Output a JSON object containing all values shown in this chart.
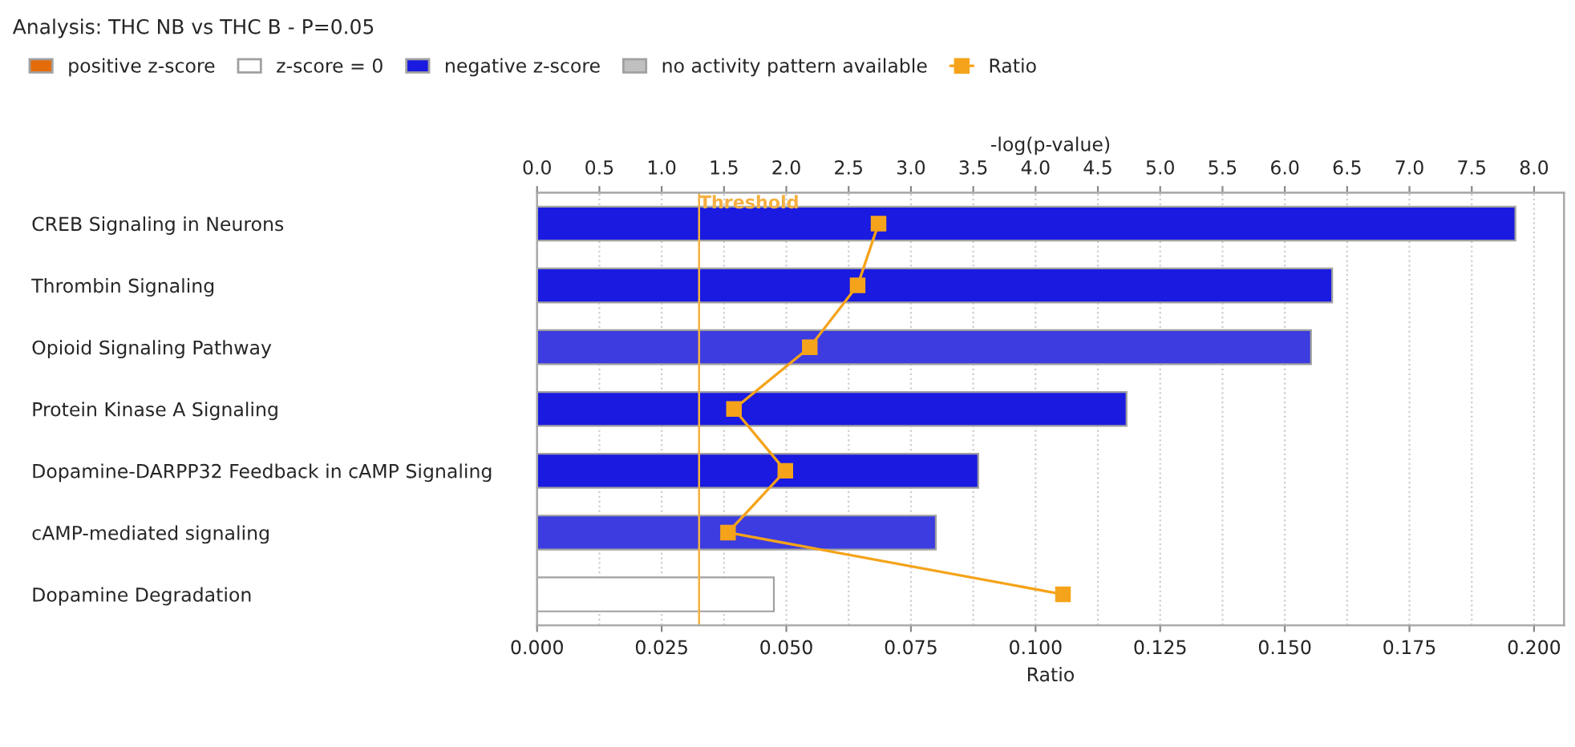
{
  "chart_data": {
    "type": "bar",
    "orientation": "horizontal",
    "title": "Analysis: THC NB vs THC B - P=0.05",
    "categories": [
      "CREB Signaling in Neurons",
      "Thrombin Signaling",
      "Opioid Signaling Pathway",
      "Protein Kinase A Signaling",
      "Dopamine-DARPP32 Feedback in cAMP Signaling",
      "cAMP-mediated signaling",
      "Dopamine Degradation"
    ],
    "series": [
      {
        "name": "positive z-score",
        "color": "#e46c0a",
        "values": [
          null,
          null,
          null,
          null,
          null,
          null,
          null
        ]
      },
      {
        "name": "z-score = 0",
        "color": "#ffffff",
        "values": [
          null,
          null,
          null,
          null,
          null,
          null,
          1.9
        ]
      },
      {
        "name": "negative z-score",
        "color": "#1a1ae0",
        "colors": [
          "#1a1ae0",
          "#1a1ae0",
          "#3c3ce0",
          "#1a1ae0",
          "#1a1ae0",
          "#3c3ce0",
          "#1a1ae0"
        ],
        "values": [
          7.85,
          6.38,
          6.21,
          4.73,
          3.54,
          3.2,
          null
        ]
      },
      {
        "name": "no activity pattern available",
        "color": "#c0c0c0",
        "values": [
          null,
          null,
          null,
          null,
          null,
          null,
          null
        ]
      },
      {
        "name": "Ratio",
        "type": "line",
        "axis": "x2",
        "color": "#f5a31a",
        "marker": "square",
        "values": [
          0.0685,
          0.0643,
          0.0547,
          0.0395,
          0.0498,
          0.0383,
          0.1055
        ]
      }
    ],
    "x2label": "Ratio",
    "x2lim": [
      0,
      0.206
    ],
    "x2ticks": [
      {
        "value": 0,
        "label": "0.000"
      },
      {
        "value": 0.025,
        "label": "0.025"
      },
      {
        "value": 0.05,
        "label": "0.050"
      },
      {
        "value": 0.075,
        "label": "0.075"
      },
      {
        "value": 0.1,
        "label": "0.100"
      },
      {
        "value": 0.125,
        "label": "0.125"
      },
      {
        "value": 0.15,
        "label": "0.150"
      },
      {
        "value": 0.175,
        "label": "0.175"
      },
      {
        "value": 0.2,
        "label": "0.200"
      }
    ],
    "xlabel": "-log(p-value)",
    "xlim": [
      0,
      8.24
    ],
    "xticks": [
      {
        "value": 0,
        "label": "0.0"
      },
      0.5,
      {
        "value": 1,
        "label": "1.0"
      },
      1.5,
      {
        "value": 2,
        "label": "2.0"
      },
      2.5,
      {
        "value": 3,
        "label": "3.0"
      },
      3.5,
      {
        "value": 4,
        "label": "4.0"
      },
      4.5,
      {
        "value": 5,
        "label": "5.0"
      },
      5.5,
      {
        "value": 6,
        "label": "6.0"
      },
      6.5,
      {
        "value": 7,
        "label": "7.0"
      },
      7.5,
      {
        "value": 8,
        "label": "8.0"
      }
    ],
    "ref_lines": [
      {
        "axis": "x",
        "value": 1.3,
        "label": "Threshold",
        "color": "#f5b041"
      }
    ],
    "grid": "x",
    "legend": "top left"
  }
}
